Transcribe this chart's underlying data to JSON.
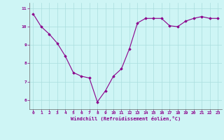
{
  "x": [
    0,
    1,
    2,
    3,
    4,
    5,
    6,
    7,
    8,
    9,
    10,
    11,
    12,
    13,
    14,
    15,
    16,
    17,
    18,
    19,
    20,
    21,
    22,
    23
  ],
  "y": [
    10.7,
    10.0,
    9.6,
    9.1,
    8.4,
    7.5,
    7.3,
    7.2,
    5.9,
    6.5,
    7.3,
    7.7,
    8.8,
    10.2,
    10.45,
    10.45,
    10.45,
    10.05,
    10.0,
    10.3,
    10.45,
    10.55,
    10.45,
    10.45
  ],
  "line_color": "#8B008B",
  "marker": "D",
  "marker_size": 1.8,
  "line_width": 0.8,
  "bg_color": "#cef5f5",
  "grid_color": "#aadddd",
  "xlabel": "Windchill (Refroidissement éolien,°C)",
  "xlabel_color": "#8B008B",
  "xlabel_fontsize": 5.0,
  "tick_color": "#8B008B",
  "tick_fontsize": 4.5,
  "ylim": [
    5.5,
    11.3
  ],
  "xlim": [
    -0.5,
    23.5
  ],
  "yticks": [
    6,
    7,
    8,
    9,
    10,
    11
  ],
  "xticks": [
    0,
    1,
    2,
    3,
    4,
    5,
    6,
    7,
    8,
    9,
    10,
    11,
    12,
    13,
    14,
    15,
    16,
    17,
    18,
    19,
    20,
    21,
    22,
    23
  ]
}
